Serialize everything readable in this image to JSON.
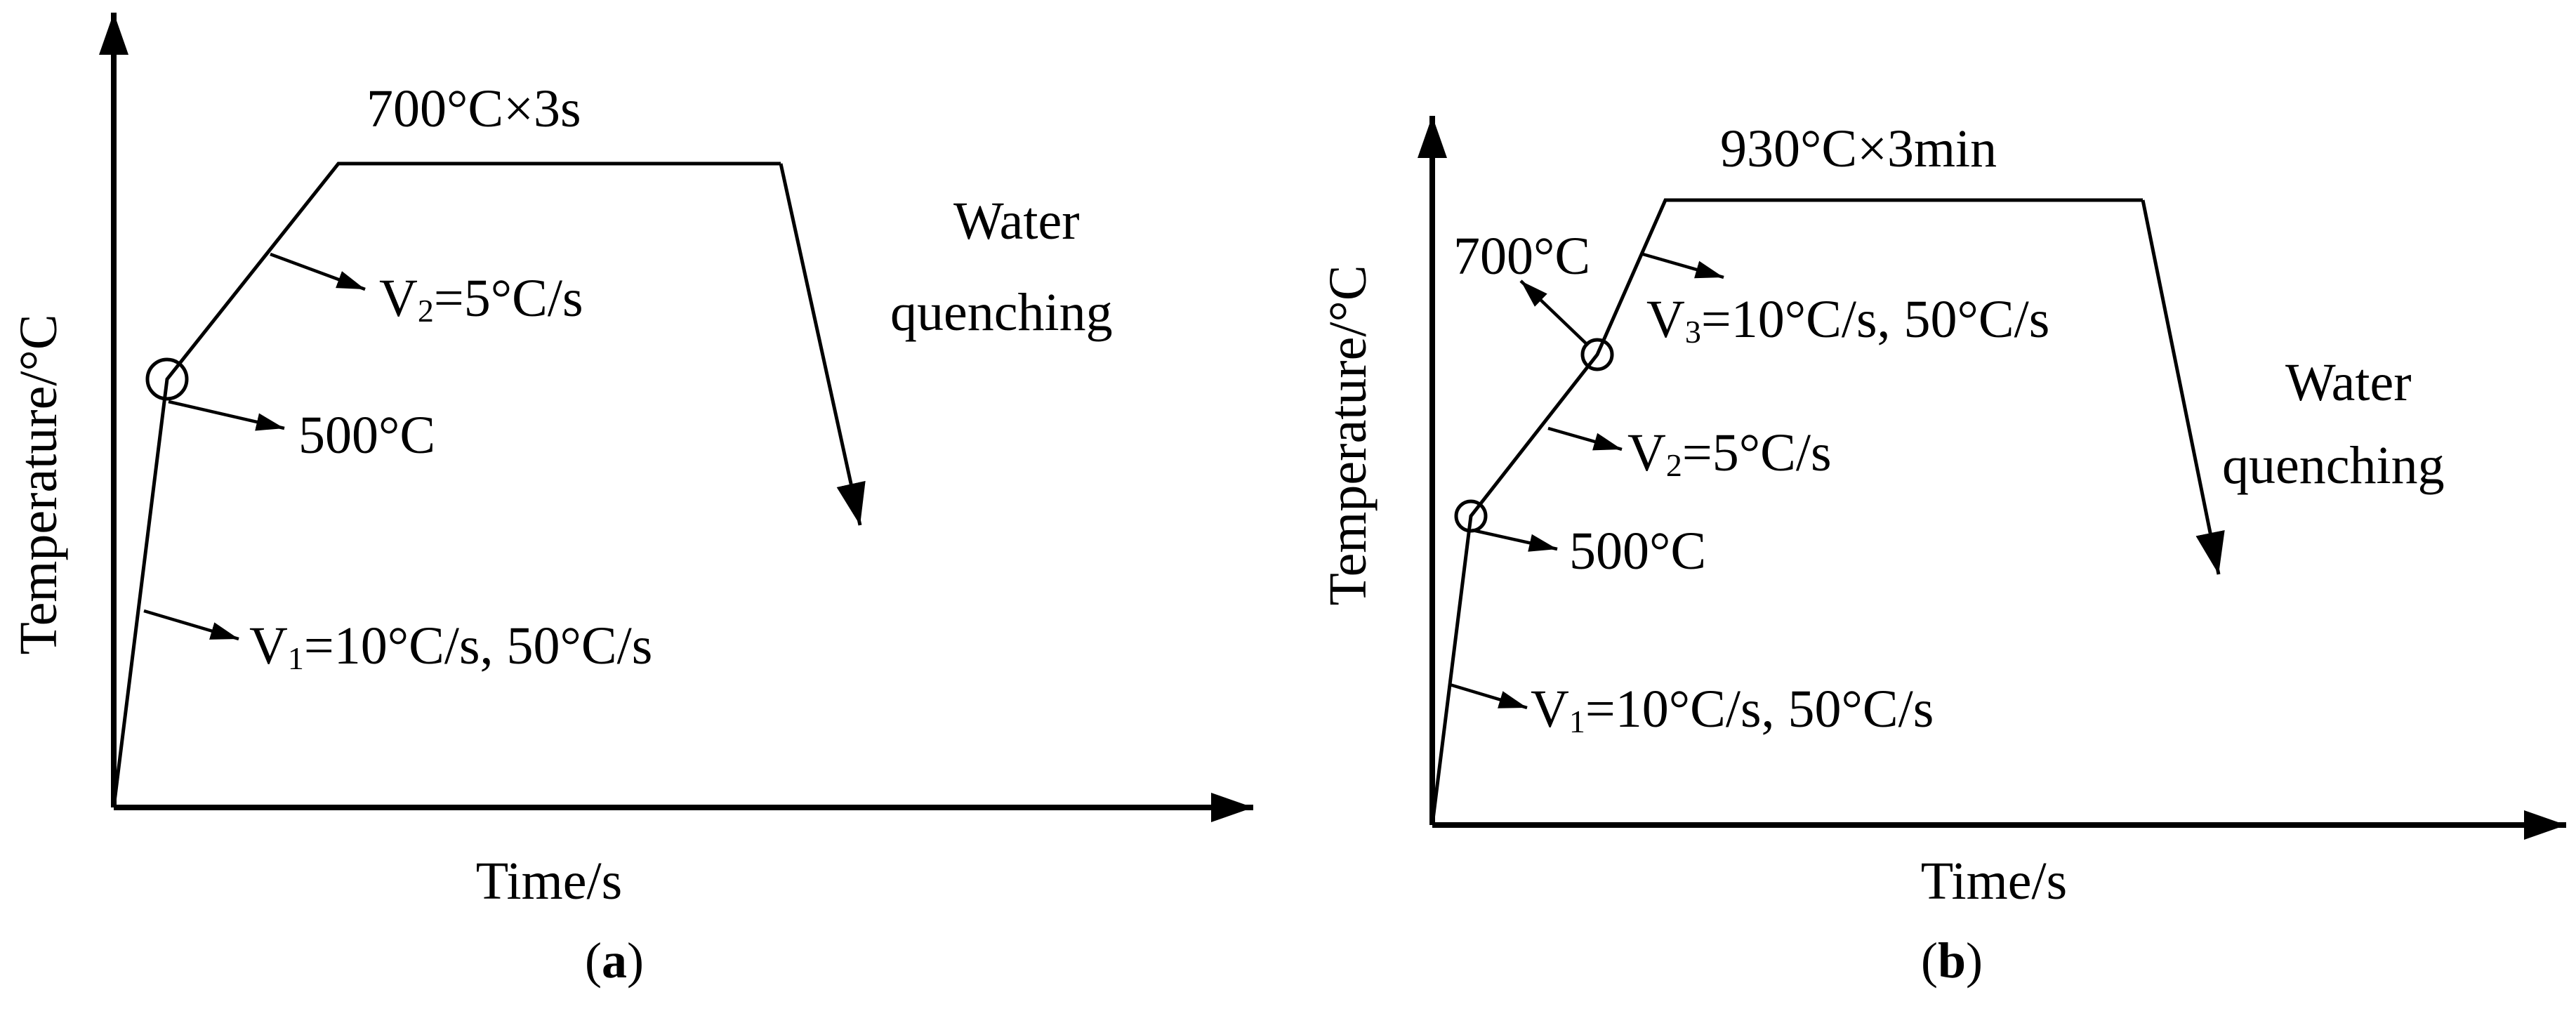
{
  "panel_a": {
    "y_axis_label": "Temperature/°C",
    "x_axis_label": "Time/s",
    "hold_label": "700°C×3s",
    "quench_line1": "Water",
    "quench_line2": "quenching",
    "v2_prefix": "V",
    "v2_sub": "2",
    "v2_rest": "=5°C/s",
    "point_label": "500°C",
    "v1_prefix": "V",
    "v1_sub": "1",
    "v1_rest": "=10°C/s, 50°C/s",
    "caption_open": "(",
    "caption_letter": "a",
    "caption_close": ")"
  },
  "panel_b": {
    "y_axis_label": "Temperature/°C",
    "x_axis_label": "Time/s",
    "hold_label": "930°C×3min",
    "point_700_label": "700°C",
    "v3_prefix": "V",
    "v3_sub": "3",
    "v3_rest": "=10°C/s, 50°C/s",
    "quench_line1": "Water",
    "quench_line2": "quenching",
    "v2_prefix": "V",
    "v2_sub": "2",
    "v2_rest": "=5°C/s",
    "point_500_label": "500°C",
    "v1_prefix": "V",
    "v1_sub": "1",
    "v1_rest": "=10°C/s, 50°C/s",
    "caption_open": "(",
    "caption_letter": "b",
    "caption_close": ")"
  }
}
